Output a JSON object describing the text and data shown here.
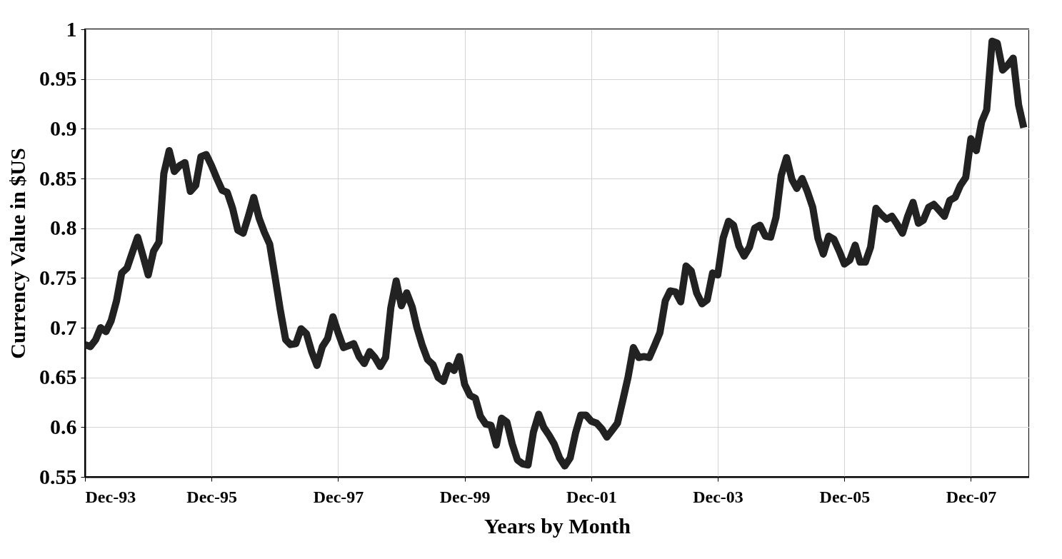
{
  "chart_data": {
    "type": "line",
    "xlabel": "Years by Month",
    "ylabel": "Currency Value in $US",
    "x": [
      "1993-12",
      "1994-01",
      "1994-02",
      "1994-03",
      "1994-04",
      "1994-05",
      "1994-06",
      "1994-07",
      "1994-08",
      "1994-09",
      "1994-10",
      "1994-11",
      "1994-12",
      "1995-01",
      "1995-02",
      "1995-03",
      "1995-04",
      "1995-05",
      "1995-06",
      "1995-07",
      "1995-08",
      "1995-09",
      "1995-10",
      "1995-11",
      "1995-12",
      "1996-01",
      "1996-02",
      "1996-03",
      "1996-04",
      "1996-05",
      "1996-06",
      "1996-07",
      "1996-08",
      "1996-09",
      "1996-10",
      "1996-11",
      "1996-12",
      "1997-01",
      "1997-02",
      "1997-03",
      "1997-04",
      "1997-05",
      "1997-06",
      "1997-07",
      "1997-08",
      "1997-09",
      "1997-10",
      "1997-11",
      "1997-12",
      "1998-01",
      "1998-02",
      "1998-03",
      "1998-04",
      "1998-05",
      "1998-06",
      "1998-07",
      "1998-08",
      "1998-09",
      "1998-10",
      "1998-11",
      "1998-12",
      "1999-01",
      "1999-02",
      "1999-03",
      "1999-04",
      "1999-05",
      "1999-06",
      "1999-07",
      "1999-08",
      "1999-09",
      "1999-10",
      "1999-11",
      "1999-12",
      "2000-01",
      "2000-02",
      "2000-03",
      "2000-04",
      "2000-05",
      "2000-06",
      "2000-07",
      "2000-08",
      "2000-09",
      "2000-10",
      "2000-11",
      "2000-12",
      "2001-01",
      "2001-02",
      "2001-03",
      "2001-04",
      "2001-05",
      "2001-06",
      "2001-07",
      "2001-08",
      "2001-09",
      "2001-10",
      "2001-11",
      "2001-12",
      "2002-01",
      "2002-02",
      "2002-03",
      "2002-04",
      "2002-05",
      "2002-06",
      "2002-07",
      "2002-08",
      "2002-09",
      "2002-10",
      "2002-11",
      "2002-12",
      "2003-01",
      "2003-02",
      "2003-03",
      "2003-04",
      "2003-05",
      "2003-06",
      "2003-07",
      "2003-08",
      "2003-09",
      "2003-10",
      "2003-11",
      "2003-12",
      "2004-01",
      "2004-02",
      "2004-03",
      "2004-04",
      "2004-05",
      "2004-06",
      "2004-07",
      "2004-08",
      "2004-09",
      "2004-10",
      "2004-11",
      "2004-12",
      "2005-01",
      "2005-02",
      "2005-03",
      "2005-04",
      "2005-05",
      "2005-06",
      "2005-07",
      "2005-08",
      "2005-09",
      "2005-10",
      "2005-11",
      "2005-12",
      "2006-01",
      "2006-02",
      "2006-03",
      "2006-04",
      "2006-05",
      "2006-06",
      "2006-07",
      "2006-08",
      "2006-09",
      "2006-10",
      "2006-11",
      "2006-12",
      "2007-01",
      "2007-02",
      "2007-03",
      "2007-04",
      "2007-05",
      "2007-06",
      "2007-07",
      "2007-08",
      "2007-09",
      "2007-10",
      "2007-11",
      "2007-12",
      "2008-01",
      "2008-02",
      "2008-03",
      "2008-04",
      "2008-05",
      "2008-06",
      "2008-07",
      "2008-08",
      "2008-09",
      "2008-10"
    ],
    "series": [
      {
        "color": "#222222",
        "values": [
          0.683,
          0.681,
          0.688,
          0.7,
          0.696,
          0.707,
          0.727,
          0.755,
          0.76,
          0.776,
          0.791,
          0.772,
          0.753,
          0.777,
          0.786,
          0.855,
          0.878,
          0.857,
          0.863,
          0.866,
          0.837,
          0.843,
          0.872,
          0.874,
          0.863,
          0.85,
          0.838,
          0.836,
          0.82,
          0.798,
          0.795,
          0.812,
          0.831,
          0.81,
          0.796,
          0.784,
          0.752,
          0.718,
          0.688,
          0.683,
          0.684,
          0.699,
          0.694,
          0.676,
          0.662,
          0.681,
          0.689,
          0.711,
          0.695,
          0.68,
          0.682,
          0.684,
          0.671,
          0.664,
          0.676,
          0.67,
          0.661,
          0.67,
          0.72,
          0.747,
          0.722,
          0.735,
          0.721,
          0.7,
          0.682,
          0.668,
          0.663,
          0.65,
          0.646,
          0.662,
          0.657,
          0.671,
          0.643,
          0.632,
          0.629,
          0.611,
          0.603,
          0.602,
          0.582,
          0.609,
          0.605,
          0.583,
          0.567,
          0.563,
          0.562,
          0.595,
          0.613,
          0.6,
          0.592,
          0.583,
          0.569,
          0.561,
          0.569,
          0.594,
          0.612,
          0.612,
          0.606,
          0.604,
          0.598,
          0.59,
          0.597,
          0.604,
          0.627,
          0.65,
          0.68,
          0.67,
          0.671,
          0.67,
          0.682,
          0.695,
          0.727,
          0.737,
          0.736,
          0.726,
          0.762,
          0.757,
          0.735,
          0.724,
          0.728,
          0.755,
          0.753,
          0.79,
          0.807,
          0.803,
          0.782,
          0.772,
          0.781,
          0.8,
          0.803,
          0.792,
          0.791,
          0.811,
          0.853,
          0.871,
          0.849,
          0.84,
          0.85,
          0.837,
          0.821,
          0.79,
          0.774,
          0.792,
          0.789,
          0.777,
          0.764,
          0.768,
          0.783,
          0.766,
          0.766,
          0.781,
          0.82,
          0.814,
          0.809,
          0.812,
          0.804,
          0.795,
          0.812,
          0.826,
          0.805,
          0.808,
          0.821,
          0.824,
          0.818,
          0.812,
          0.828,
          0.831,
          0.843,
          0.851,
          0.89,
          0.878,
          0.907,
          0.919,
          0.988,
          0.986,
          0.959,
          0.964,
          0.971,
          0.924,
          0.901
        ]
      }
    ],
    "xlim": [
      "1993-12",
      "2008-11"
    ],
    "xticks": [
      {
        "value": "1993-12",
        "label": "Dec-93"
      },
      {
        "value": "1995-12",
        "label": "Dec-95"
      },
      {
        "value": "1997-12",
        "label": "Dec-97"
      },
      {
        "value": "1999-12",
        "label": "Dec-99"
      },
      {
        "value": "2001-12",
        "label": "Dec-01"
      },
      {
        "value": "2003-12",
        "label": "Dec-03"
      },
      {
        "value": "2005-12",
        "label": "Dec-05"
      },
      {
        "value": "2007-12",
        "label": "Dec-07"
      }
    ],
    "ylim": [
      0.55,
      1
    ],
    "yticks": [
      0.55,
      0.6,
      0.65,
      0.7,
      0.75,
      0.8,
      0.85,
      0.9,
      0.95,
      1
    ],
    "grid": true,
    "line_style": "solid"
  }
}
